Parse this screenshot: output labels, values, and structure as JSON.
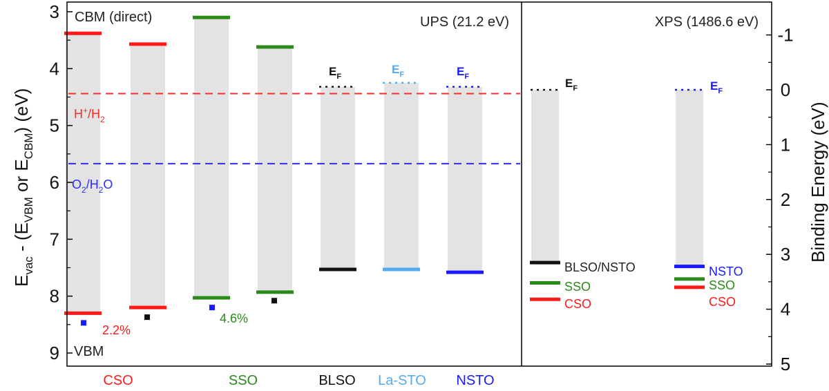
{
  "chart_data": {
    "type": "energy-level-diagram",
    "left_axis": {
      "label_main": "E",
      "label_vac": "vac",
      "label_middle": " - (E",
      "label_vbm": "VBM",
      "label_or": " or E",
      "label_cbm": "CBM",
      "label_close": ") (eV)",
      "ylim": [
        9,
        3
      ],
      "ticks": [
        "3",
        "4",
        "5",
        "6",
        "7",
        "8",
        "9"
      ],
      "tick_values": [
        3,
        4,
        5,
        6,
        7,
        8,
        9
      ]
    },
    "right_axis": {
      "label": "Binding Energy  (eV)",
      "ylim": [
        5,
        -1.1
      ],
      "ticks": [
        "-1",
        "0",
        "1",
        "2",
        "3",
        "4",
        "5"
      ],
      "tick_values": [
        -1,
        0,
        1,
        2,
        3,
        4,
        5
      ]
    },
    "panels": {
      "ups_title": "UPS (21.2 eV)",
      "xps_title": "XPS (1486.6 eV)"
    },
    "annotations": {
      "cbm": "CBM (direct)",
      "vbm": "VBM",
      "h_sup": "+",
      "h_label_pre": "H",
      "h_label_mid": "/H",
      "h_sub": "2",
      "o_pre": "O",
      "o_sub1": "2",
      "o_mid": "/H",
      "o_sub2": "2",
      "o_post": "O",
      "pct_cso": "2.2%",
      "pct_sso": "4.6%",
      "ef_main": "E",
      "ef_sub": "F"
    },
    "redox_levels": [
      {
        "name": "H+/H2",
        "value": 4.44,
        "color": "#ff2a2a"
      },
      {
        "name": "O2/H2O",
        "value": 5.67,
        "color": "#2a2aff"
      }
    ],
    "ups_materials": [
      {
        "label": "CSO",
        "color": "#ff1a1a",
        "cbm": 3.38,
        "vbm": 8.3,
        "extra_cbm": 3.57,
        "extra_vbm": 8.2
      },
      {
        "label": "SSO",
        "color": "#2a8a1a",
        "cbm": 3.1,
        "vbm": 8.03,
        "extra_cbm": 3.62,
        "extra_vbm": 7.93
      },
      {
        "label": "BLSO",
        "color": "#111111",
        "ef": 4.32,
        "vbm": 7.53
      },
      {
        "label": "La-STO",
        "color": "#55aaee",
        "ef": 4.25,
        "vbm": 7.53
      },
      {
        "label": "NSTO",
        "color": "#1a1aff",
        "ef": 4.32,
        "vbm": 7.58
      }
    ],
    "ups_markers": [
      {
        "color": "#1a1aff",
        "value": 8.47
      },
      {
        "color": "#111111",
        "value": 8.37
      },
      {
        "color": "#1a1aff",
        "value": 8.2
      },
      {
        "color": "#111111",
        "value": 8.08
      }
    ],
    "xps_columns": [
      {
        "ef_color": "#111111",
        "top": 0,
        "bottom": 3.15,
        "levels": [
          {
            "label": "BLSO/NSTO",
            "value": 3.15,
            "color": "#111111",
            "text_color": "#222222"
          },
          {
            "label": "SSO",
            "value": 3.52,
            "color": "#2a8a1a",
            "text_color": "#2a8a1a"
          },
          {
            "label": "CSO",
            "value": 3.82,
            "color": "#ff1a1a",
            "text_color": "#ff1a1a"
          }
        ]
      },
      {
        "ef_color": "#1a1aff",
        "top": 0,
        "bottom": 3.22,
        "levels": [
          {
            "label": "NSTO",
            "value": 3.22,
            "color": "#1a1aff",
            "text_color": "#1a1aff"
          },
          {
            "label": "SSO",
            "value": 3.45,
            "color": "#2a8a1a",
            "text_color": "#2a8a1a"
          },
          {
            "label": "CSO",
            "value": 3.6,
            "color": "#ff1a1a",
            "text_color": "#ff1a1a"
          }
        ]
      }
    ],
    "bottom_labels": [
      {
        "label": "CSO",
        "color": "#ff1a1a"
      },
      {
        "label": "SSO",
        "color": "#2a8a1a"
      },
      {
        "label": "BLSO",
        "color": "#111111"
      },
      {
        "label": "La-STO",
        "color": "#55aaee"
      },
      {
        "label": "NSTO",
        "color": "#1a1aff"
      }
    ]
  }
}
